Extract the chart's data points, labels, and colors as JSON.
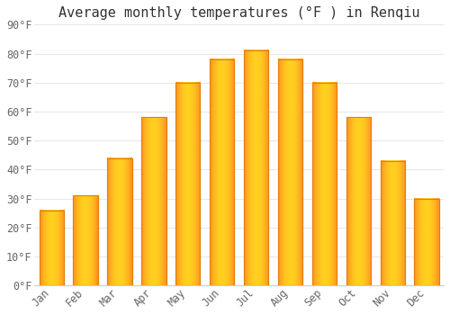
{
  "title": "Average monthly temperatures (°F ) in Renqiu",
  "months": [
    "Jan",
    "Feb",
    "Mar",
    "Apr",
    "May",
    "Jun",
    "Jul",
    "Aug",
    "Sep",
    "Oct",
    "Nov",
    "Dec"
  ],
  "values": [
    26,
    31,
    44,
    58,
    70,
    78,
    81,
    78,
    70,
    58,
    43,
    30
  ],
  "bar_color_center": "#FFD060",
  "bar_color_edge": "#E08010",
  "bar_color_fill": "#FFA820",
  "background_color": "#ffffff",
  "plot_bg_color": "#ffffff",
  "grid_color": "#e8e8e8",
  "ylim": [
    0,
    90
  ],
  "yticks": [
    0,
    10,
    20,
    30,
    40,
    50,
    60,
    70,
    80,
    90
  ],
  "ytick_labels": [
    "0°F",
    "10°F",
    "20°F",
    "30°F",
    "40°F",
    "50°F",
    "60°F",
    "70°F",
    "80°F",
    "90°F"
  ],
  "title_fontsize": 11,
  "tick_fontsize": 8.5,
  "font_family": "monospace"
}
